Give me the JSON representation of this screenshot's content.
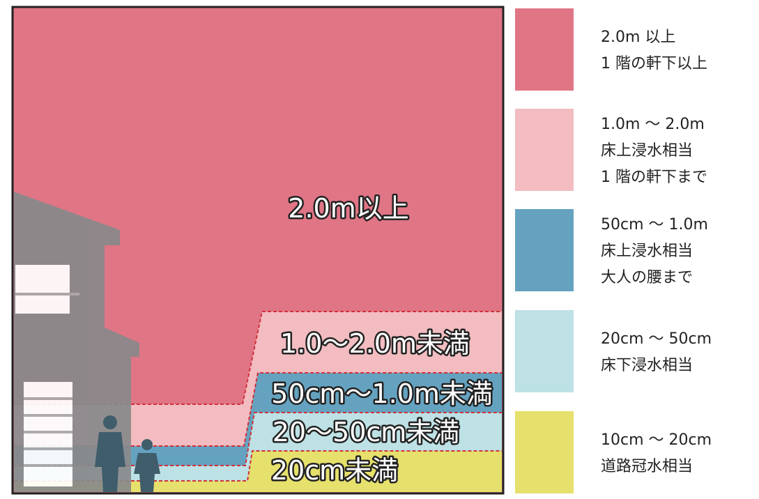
{
  "diagram": {
    "zones": [
      {
        "label": "2.0m以上"
      },
      {
        "label": "1.0〜2.0m未満"
      },
      {
        "label": "50cm〜1.0m未満"
      },
      {
        "label": "20〜50cm未満"
      },
      {
        "label": "20cm未満"
      }
    ],
    "legend": [
      {
        "lines": [
          "2.0m 以上",
          "1 階の軒下以上"
        ]
      },
      {
        "lines": [
          "1.0m 〜 2.0m",
          "床上浸水相当",
          "1 階の軒下まで"
        ]
      },
      {
        "lines": [
          "50cm 〜 1.0m",
          "床上浸水相当",
          "大人の腰まで"
        ]
      },
      {
        "lines": [
          "20cm 〜 50cm",
          "床下浸水相当"
        ]
      },
      {
        "lines": [
          "10cm 〜 20cm",
          "道路冠水相当"
        ]
      }
    ]
  }
}
